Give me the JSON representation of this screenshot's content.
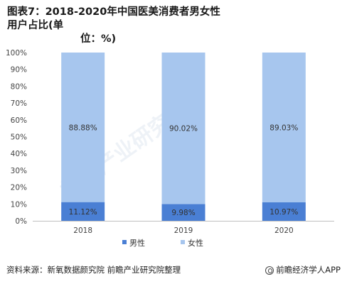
{
  "title": {
    "line1": "图表7：2018-2020年中国医美消费者男女性用户占比(单",
    "line2": "位：%)"
  },
  "chart_data": {
    "type": "bar",
    "stacked": true,
    "categories": [
      "2018",
      "2019",
      "2020"
    ],
    "series": [
      {
        "name": "男性",
        "values": [
          11.12,
          9.98,
          10.97
        ],
        "labels": [
          "11.12%",
          "9.98%",
          "10.97%"
        ],
        "color": "#4a7fd4"
      },
      {
        "name": "女性",
        "values": [
          88.88,
          90.02,
          89.03
        ],
        "labels": [
          "88.88%",
          "90.02%",
          "89.03%"
        ],
        "color": "#a7c6ee"
      }
    ],
    "ylim": [
      0,
      100
    ],
    "yticks": [
      "0%",
      "10%",
      "20%",
      "30%",
      "40%",
      "50%",
      "60%",
      "70%",
      "80%",
      "90%",
      "100%"
    ],
    "legend": "bottom",
    "grid": false
  },
  "footer": {
    "source": "资料来源：新氧数据颜究院 前瞻产业研究院整理",
    "brand": "前瞻经济学人APP"
  }
}
